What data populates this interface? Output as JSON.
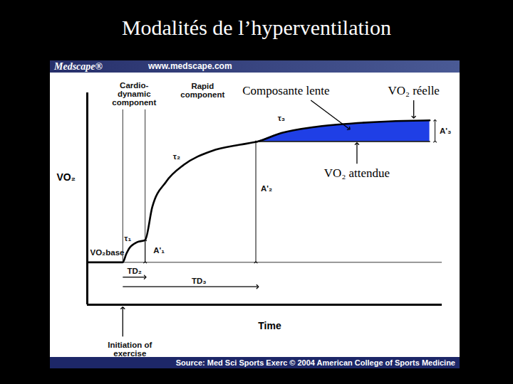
{
  "chart_data": {
    "type": "line",
    "title": "Modalités de l’hyperventilation",
    "header": [
      "Medscape®",
      "www.medscape.com"
    ],
    "source": "Source: Med Sci Sports Exerc © 2004 American College of Sports Medicine",
    "x_label": "Time",
    "y_label": "VO₂",
    "x": [
      0,
      10,
      11,
      12,
      13,
      14,
      16.3,
      18.3,
      22.2,
      27.2,
      35,
      43,
      48,
      54.7,
      64.6,
      74.4,
      86,
      96.5
    ],
    "series": [
      {
        "name": "VO₂ réelle",
        "color": "#000000",
        "values": [
          20,
          20,
          24,
          27,
          28.5,
          29.5,
          30.5,
          46,
          58,
          66,
          72.5,
          75.5,
          77,
          81,
          84,
          85.5,
          86.6,
          87
        ]
      },
      {
        "name": "VO₂ attendue",
        "color": "#000000",
        "values": [
          null,
          null,
          null,
          null,
          null,
          null,
          null,
          null,
          null,
          null,
          null,
          null,
          77,
          77,
          77,
          77,
          77,
          77
        ]
      }
    ],
    "color": "#1f3fe6",
    "annotations": [
      "Cardio-\ndynamic\ncomponent",
      "Rapid\ncomponent",
      "τ₁",
      "τ₂",
      "τ₃",
      "A'₁",
      "A'₂",
      "A'₃",
      "VO₂base",
      "TD₂",
      "TD₃",
      "Initiation of\nexercise",
      "Composante lente"
    ],
    "xlim": [
      0,
      100
    ],
    "ylim": [
      0,
      100
    ],
    "xticks": [],
    "yticks": [],
    "tick_labels": false
  }
}
